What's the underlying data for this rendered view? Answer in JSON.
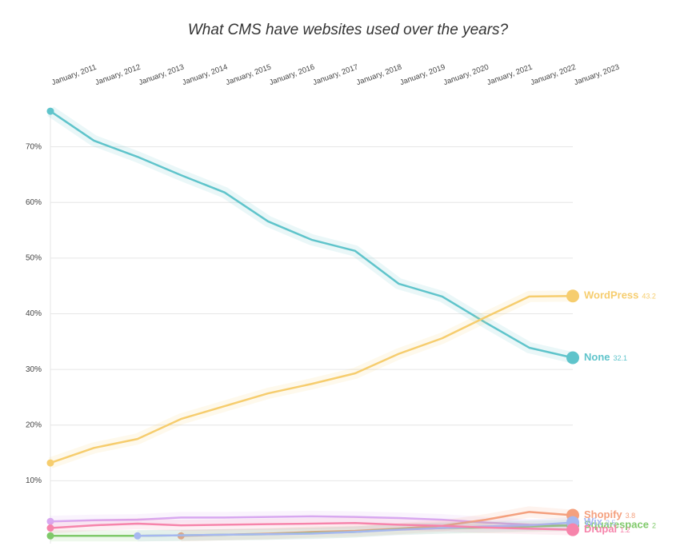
{
  "chart_data": {
    "type": "line",
    "title": "What CMS have websites used over the years?",
    "categories": [
      "January, 2011",
      "January, 2012",
      "January, 2013",
      "January, 2014",
      "January, 2015",
      "January, 2016",
      "January, 2017",
      "January, 2018",
      "January, 2019",
      "January, 2020",
      "January, 2021",
      "January, 2022",
      "January, 2023"
    ],
    "ylim": [
      0,
      80
    ],
    "yticks": [
      {
        "value": 10,
        "label": "10%"
      },
      {
        "value": 20,
        "label": "20%"
      },
      {
        "value": 30,
        "label": "30%"
      },
      {
        "value": 40,
        "label": "40%"
      },
      {
        "value": 50,
        "label": "50%"
      },
      {
        "value": 60,
        "label": "60%"
      },
      {
        "value": 70,
        "label": "70%"
      }
    ],
    "grid": true,
    "series": [
      {
        "name": "None",
        "color": "#5fc4cb",
        "values": [
          76.4,
          71.1,
          68.2,
          64.9,
          61.8,
          56.6,
          53.3,
          51.3,
          45.4,
          43.1,
          38.4,
          33.9,
          32.1
        ]
      },
      {
        "name": "WordPress",
        "color": "#f6cd6e",
        "values": [
          13.2,
          15.9,
          17.5,
          21.1,
          23.4,
          25.7,
          27.4,
          29.3,
          32.8,
          35.6,
          39.4,
          43.1,
          43.2
        ]
      },
      {
        "color": "#d8a8f0",
        "values": [
          2.7,
          2.9,
          3.0,
          3.4,
          3.4,
          3.5,
          3.6,
          3.5,
          3.3,
          3.0,
          2.5,
          2.1,
          1.9
        ]
      },
      {
        "name": "Shopify",
        "color": "#f4a07e",
        "values": [
          null,
          null,
          null,
          0.1,
          0.3,
          0.5,
          0.8,
          1.0,
          1.4,
          1.9,
          3.0,
          4.4,
          3.8
        ]
      },
      {
        "name": "Squarespace",
        "color": "#7fc96a",
        "values": [
          0.1,
          0.1,
          0.1,
          0.2,
          0.3,
          0.4,
          0.6,
          0.8,
          1.3,
          1.5,
          1.6,
          1.8,
          2
        ]
      },
      {
        "name": "Wix",
        "color": "#a6b8f0",
        "values": [
          null,
          null,
          0.1,
          0.2,
          0.3,
          0.4,
          0.5,
          0.8,
          1.2,
          1.5,
          1.8,
          2.0,
          2.5
        ]
      },
      {
        "name": "Drupal",
        "color": "#f684ab",
        "values": [
          1.5,
          2.0,
          2.3,
          2.0,
          2.1,
          2.2,
          2.3,
          2.4,
          2.1,
          1.9,
          1.6,
          1.4,
          1.2
        ]
      }
    ]
  }
}
